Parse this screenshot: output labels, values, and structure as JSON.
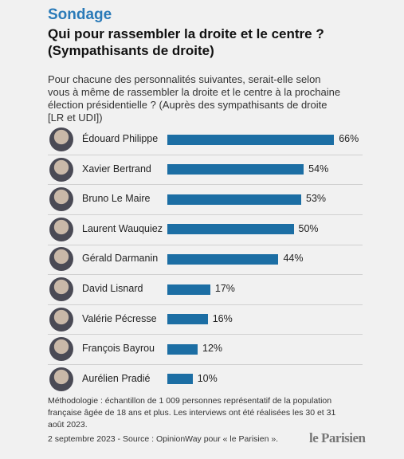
{
  "chart_data": {
    "type": "bar",
    "kicker": "Sondage",
    "title": "Qui pour rassembler la droite et le centre ?",
    "subtitle": "(Sympathisants de droite)",
    "question": "Pour chacune des personnalités suivantes, serait-elle selon vous à même de rassembler la droite et le centre à la prochaine élection présidentielle ? (Auprès des sympathisants de droite [LR et UDI])",
    "categories": [
      "Édouard Philippe",
      "Xavier Bertrand",
      "Bruno Le Maire",
      "Laurent Wauquiez",
      "Gérald Darmanin",
      "David Lisnard",
      "Valérie Pécresse",
      "François Bayrou",
      "Aurélien Pradié"
    ],
    "values": [
      66,
      54,
      53,
      50,
      44,
      17,
      16,
      12,
      10
    ],
    "value_labels": [
      "66%",
      "54%",
      "53%",
      "50%",
      "44%",
      "17%",
      "16%",
      "12%",
      "10%"
    ],
    "color": "#1c6ea4",
    "methodology": "Méthodologie : échantillon de 1 009 personnes représentatif de la population française âgée de 18 ans et plus.  Les interviews ont été réalisées les 30 et 31 août 2023.",
    "source": "2 septembre 2023 - Source : OpinionWay pour « le Parisien ».",
    "logo": "le Parisien"
  }
}
